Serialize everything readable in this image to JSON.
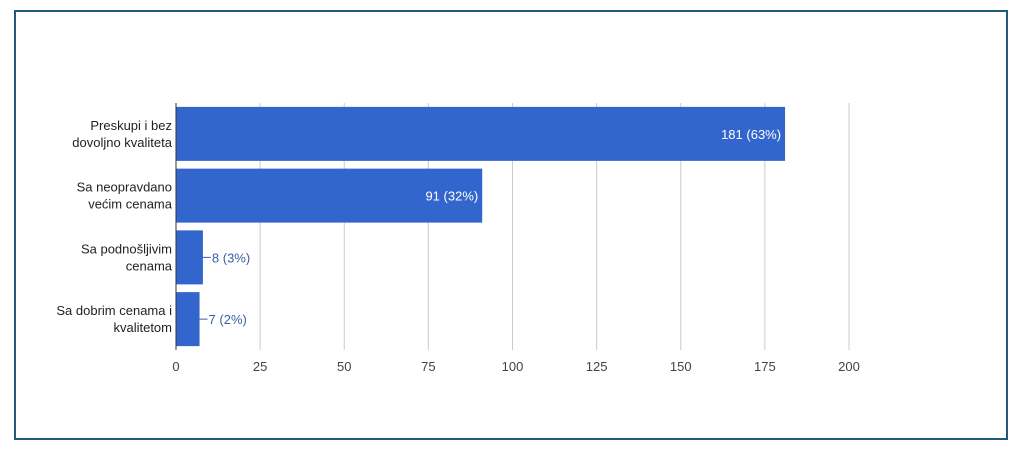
{
  "chart_data": {
    "type": "bar",
    "orientation": "horizontal",
    "categories": [
      [
        "Preskupi i bez",
        "dovoljno kvaliteta"
      ],
      [
        "Sa neopravdano",
        "većim cenama"
      ],
      [
        "Sa podnošljivim",
        "cenama"
      ],
      [
        "Sa dobrim cenama i",
        "kvalitetom"
      ]
    ],
    "values": [
      181,
      91,
      8,
      7
    ],
    "data_labels": [
      "181 (63%)",
      "91 (32%)",
      "8 (3%)",
      "7 (2%)"
    ],
    "xlim": [
      0,
      200
    ],
    "xticks": [
      "0",
      "25",
      "50",
      "75",
      "100",
      "125",
      "150",
      "175",
      "200"
    ],
    "grid": true,
    "colors": {
      "bar": "#3366cc",
      "grid": "#cccccc",
      "axis": "#333333"
    }
  }
}
